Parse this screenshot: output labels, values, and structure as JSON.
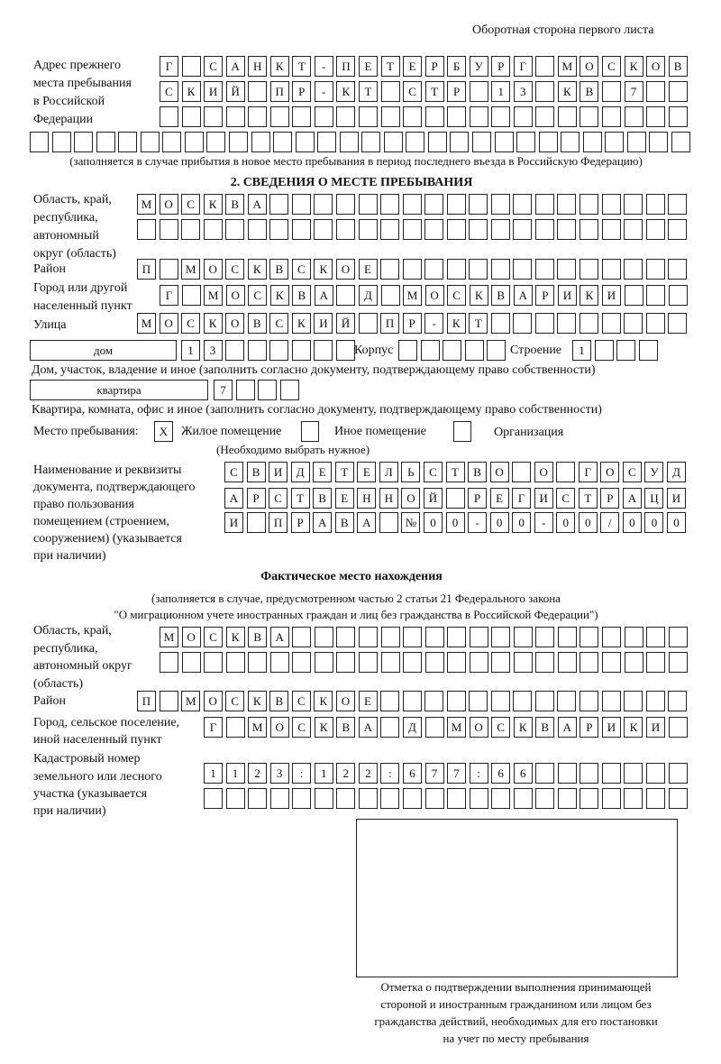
{
  "header": {
    "page_side": "Оборотная сторона первого листа"
  },
  "prev_address": {
    "label": [
      "Адрес прежнего",
      "места пребывания",
      "в Российской",
      "Федерации"
    ],
    "rows": [
      "Г САНКТ-ПЕТЕРБУРГ МОСКОВ",
      "СКИЙ ПР-КТ СТР 13 КВ 7  ",
      "                        ",
      "                              "
    ],
    "note": "(заполняется в случае прибытия в новое место пребывания в период последнего въезда в Российскую Федерацию)"
  },
  "section2": {
    "title": "2. СВЕДЕНИЯ О МЕСТЕ ПРЕБЫВАНИЯ",
    "region_label": [
      "Область, край,",
      "республика,",
      "автономный",
      "округ (область)"
    ],
    "region_rows": [
      "МОСКВА                   ",
      "                         "
    ],
    "district_label": "Район",
    "district": "П МОСКВСКОЕ              ",
    "city_label": [
      "Город или другой",
      "населенный пункт"
    ],
    "city": "Г МОСКВА Д МОСКВАРИКИ   ",
    "street_label": "Улица",
    "street": "МОСКОВСКИЙ ПР-КТ         ",
    "house_type": "дом",
    "house": "13      ",
    "korpus_label": "Корпус",
    "korpus": "     ",
    "building_label": "Строение",
    "building": "1   ",
    "house_note": "Дом, участок, владение и иное (заполнить согласно документу, подтверждающему право собственности)",
    "apt_type": "квартира",
    "apt": "7   ",
    "apt_note": "Квартира, комната, офис и иное (заполнить согласно документу, подтверждающему право собственности)",
    "stay_label": "Место пребывания:",
    "stay_options": [
      {
        "label": "Жилое помещение",
        "mark": "X"
      },
      {
        "label": "Иное помещение",
        "mark": ""
      },
      {
        "label": "Организация",
        "mark": ""
      }
    ],
    "stay_note": "(Необходимо выбрать нужное)",
    "doc_label": [
      "Наименование и реквизиты",
      "документа, подтверждающего",
      "право пользования",
      "помещением (строением,",
      "сооружением) (указывается",
      "при наличии)"
    ],
    "doc_rows": [
      "СВИДЕТЕЛЬСТВО О ГОСУД",
      "АРСТВЕННОЙ РЕГИСТРАЦИ",
      "И ПРАВА №00-00-00/000"
    ]
  },
  "actual": {
    "title": "Фактическое место нахождения",
    "note": [
      "(заполняется в случае, предусмотренном частью 2 статьи 21 Федерального закона",
      "\"О миграционном учете иностранных граждан и лиц без гражданства в Российской Федерации\")"
    ],
    "region_label": [
      "Область, край,",
      "республика,",
      "автономный округ",
      "(область)"
    ],
    "region_rows": [
      "МОСКВА                  ",
      "                        "
    ],
    "district_label": "Район",
    "district": "П МОСКВСКОЕ              ",
    "city_label": [
      "Город, сельское поселение,",
      "иной населенный пункт"
    ],
    "city": "Г МОСКВА Д МОСКВАРИКИ ",
    "cadastre_label": [
      "Кадастровый номер",
      "земельного или лесного",
      "участка (указывается",
      "при наличии)"
    ],
    "cadastre_rows": [
      "1123:122:677:66       ",
      "                      "
    ]
  },
  "stamp": {
    "caption": [
      "Отметка о подтверждении выполнения принимающей",
      "стороной и иностранным гражданином или лицом без",
      "гражданства действий, необходимых для его постановки",
      "на учет по месту пребывания"
    ]
  }
}
